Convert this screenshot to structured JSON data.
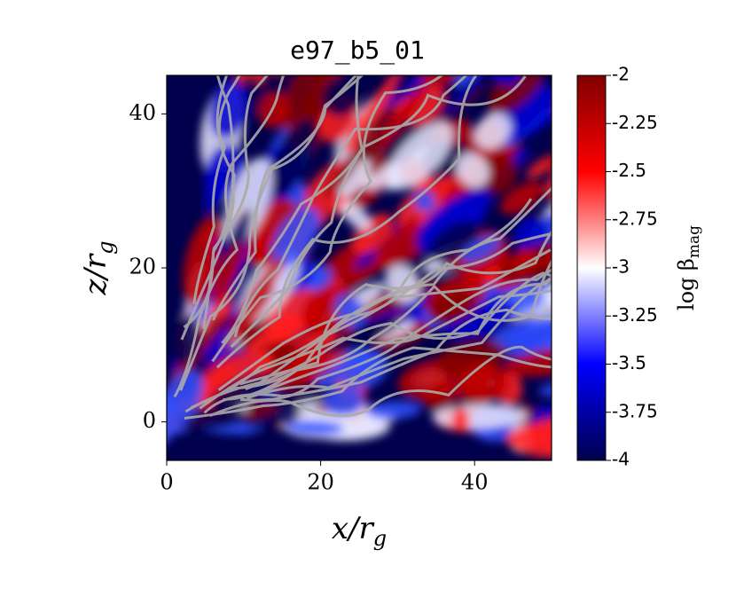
{
  "chart_data": {
    "type": "heatmap",
    "title": "e97_b5_01",
    "xlabel": {
      "text": "x/r",
      "sub": "g"
    },
    "ylabel": {
      "text": "z/r",
      "sub": "g"
    },
    "xlim": [
      0,
      50
    ],
    "xticks": [
      0,
      20,
      40
    ],
    "ylim": [
      -5,
      45
    ],
    "yticks": [
      0,
      20,
      40
    ],
    "colorbar": {
      "label": {
        "text": "log β",
        "sub": "mag"
      },
      "lim": [
        -4,
        -2
      ],
      "ticks": [
        -2,
        -2.25,
        -2.5,
        -2.75,
        -3,
        -3.25,
        -3.5,
        -3.75,
        -4
      ],
      "colors": [
        "#00004c",
        "#0000ff",
        "#ffffff",
        "#ff0000",
        "#800000"
      ]
    }
  }
}
